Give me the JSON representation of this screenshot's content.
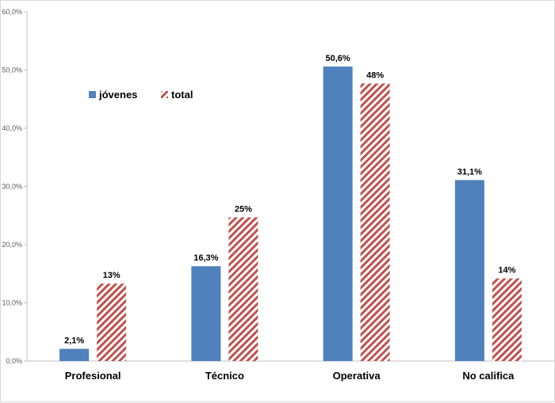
{
  "chart_data": {
    "type": "bar",
    "title": "",
    "xlabel": "",
    "ylabel": "",
    "categories": [
      "Profesional",
      "Técnico",
      "Operativa",
      "No califica"
    ],
    "series": [
      {
        "name": "jóvenes",
        "values": [
          2.1,
          16.3,
          50.6,
          31.1
        ],
        "labels": [
          "2,1%",
          "16,3%",
          "50,6%",
          "31,1%"
        ],
        "color": "#4F81BD",
        "pattern": "solid"
      },
      {
        "name": "total",
        "values": [
          13.3,
          24.7,
          47.7,
          14.2
        ],
        "labels": [
          "13%",
          "25%",
          "48%",
          "14%"
        ],
        "color": "#C0504D",
        "pattern": "diagonal-hatch"
      }
    ],
    "ylim": [
      0,
      60
    ],
    "yticks": [
      0,
      10,
      20,
      30,
      40,
      50,
      60
    ],
    "ytick_labels": [
      "0,0%",
      "10,0%",
      "20,0%",
      "30,0%",
      "40,0%",
      "50,0%",
      "60,0%"
    ],
    "grid": false,
    "legend": "top-left"
  }
}
